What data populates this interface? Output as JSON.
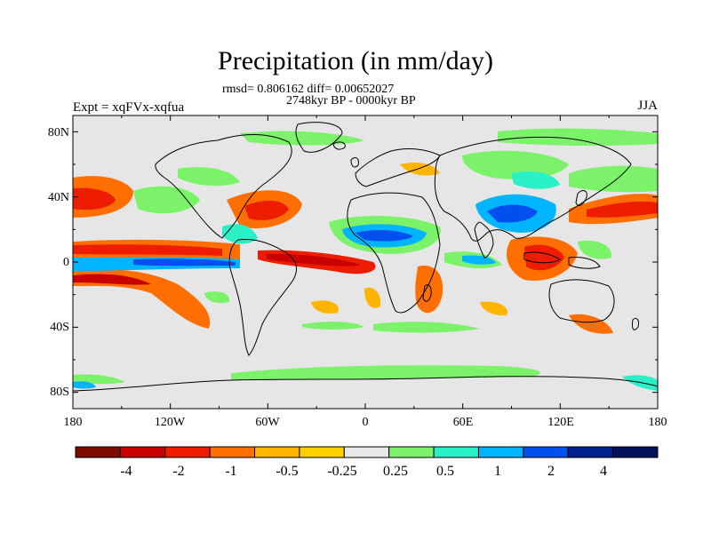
{
  "title": "Precipitation (in mm/day)",
  "subtitle": "rmsd= 0.806162 diff= 0.00652027",
  "period": "2748kyr BP - 0000kyr BP",
  "experiment": "Expt = xqFVx-xqfua",
  "season": "JJA",
  "axes": {
    "y_ticks": [
      "80N",
      "40N",
      "0",
      "40S",
      "80S"
    ],
    "x_ticks": [
      "180",
      "120W",
      "60W",
      "0",
      "60E",
      "120E",
      "180"
    ]
  },
  "colorbar": {
    "colors": [
      "#7f0a00",
      "#c80000",
      "#ee1c00",
      "#ff6e00",
      "#ffb400",
      "#ffd000",
      "#e8e8e8",
      "#7cf26a",
      "#2af0c8",
      "#00b4ff",
      "#0050f0",
      "#002090",
      "#00105a"
    ],
    "labels": [
      "-4",
      "-2",
      "-1",
      "-0.5",
      "-0.25",
      "0.25",
      "0.5",
      "1",
      "2",
      "4"
    ]
  },
  "map_colors": {
    "background": "#e6e6e6",
    "coast": "#000000"
  }
}
